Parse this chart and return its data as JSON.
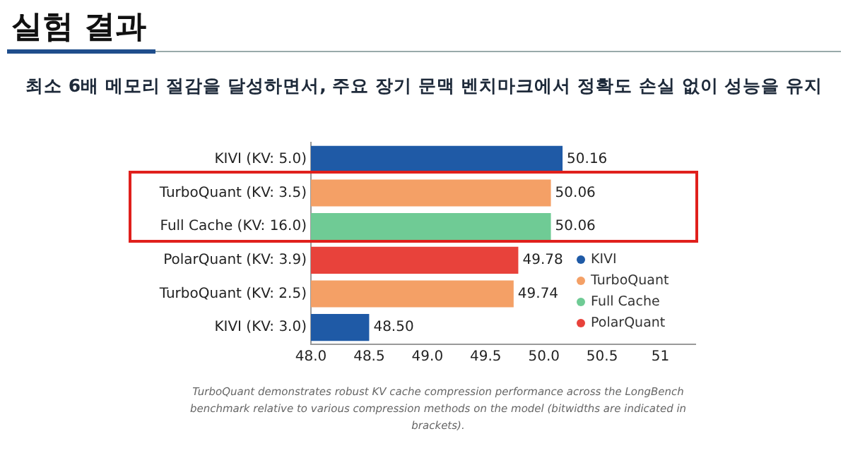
{
  "chart_data": {
    "type": "bar",
    "orientation": "horizontal",
    "title": "실험 결과",
    "subtitle": "최소 6배 메모리 절감을 달성하면서, 주요 장기 문맥 벤치마크에서 정확도 손실 없이 성능을 유지",
    "categories": [
      "KIVI (KV: 5.0)",
      "TurboQuant (KV: 3.5)",
      "Full Cache (KV: 16.0)",
      "PolarQuant (KV: 3.9)",
      "TurboQuant (KV: 2.5)",
      "KIVI (KV: 3.0)"
    ],
    "series": [
      {
        "name": "KIVI",
        "color": "#1f5aa6",
        "values": [
          50.16,
          null,
          null,
          null,
          null,
          48.5
        ],
        "value_labels": [
          "50.16",
          null,
          null,
          null,
          null,
          "48.50"
        ]
      },
      {
        "name": "TurboQuant",
        "color": "#f4a066",
        "values": [
          null,
          50.06,
          null,
          null,
          49.74,
          null
        ],
        "value_labels": [
          null,
          "50.06",
          null,
          null,
          "49.74",
          null
        ]
      },
      {
        "name": "Full Cache",
        "color": "#6fcb95",
        "values": [
          null,
          null,
          50.06,
          null,
          null,
          null
        ],
        "value_labels": [
          null,
          null,
          "50.06",
          null,
          null,
          null
        ]
      },
      {
        "name": "PolarQuant",
        "color": "#e8423b",
        "values": [
          null,
          null,
          null,
          49.78,
          null,
          null
        ],
        "value_labels": [
          null,
          null,
          null,
          "49.78",
          null,
          null
        ]
      }
    ],
    "xlim": [
      48.0,
      51.3
    ],
    "xticks": [
      {
        "value": 48.0,
        "label": "48.0"
      },
      {
        "value": 48.5,
        "label": "48.5"
      },
      {
        "value": 49.0,
        "label": "49.0"
      },
      {
        "value": 49.5,
        "label": "49.5"
      },
      {
        "value": 50.0,
        "label": "50.0"
      },
      {
        "value": 50.5,
        "label": "50.5"
      },
      51
    ],
    "grid": false,
    "legend": "bottom right",
    "annotations": [
      "TurboQuant demonstrates robust KV cache compression performance across the LongBench benchmark relative to various compression methods on the model (bitwidths are indicated in brackets)."
    ]
  }
}
